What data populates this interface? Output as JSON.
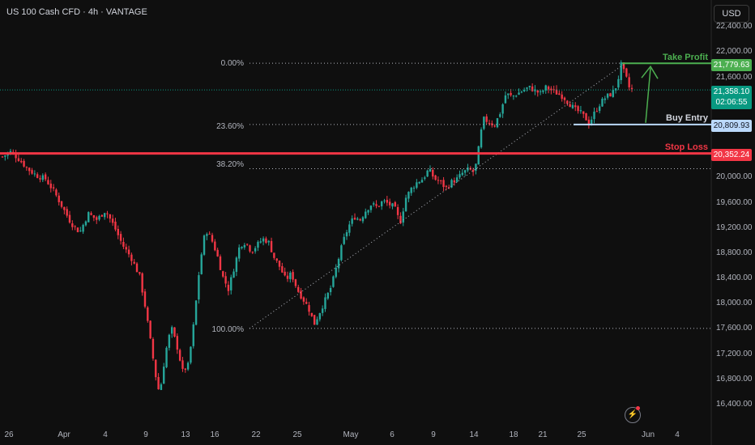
{
  "header": {
    "title": "US 100 Cash CFD · 4h · VANTAGE",
    "currency_button": "USD"
  },
  "colors": {
    "up": "#26a69a",
    "down": "#f23645",
    "take_profit": "#4caf50",
    "stop_loss": "#f23645",
    "buy_entry": "#bbd9fb",
    "price": "#089981"
  },
  "lightning_icon": "⚡",
  "chart_data": {
    "type": "candlestick",
    "symbol": "US 100 Cash CFD",
    "timeframe": "4h",
    "broker": "VANTAGE",
    "y_ticks": [
      "22,400.00",
      "22,000.00",
      "21,600.00",
      "20,000.00",
      "19,600.00",
      "19,200.00",
      "18,800.00",
      "18,400.00",
      "18,000.00",
      "17,600.00",
      "17,200.00",
      "16,800.00",
      "16,400.00"
    ],
    "x_ticks": [
      "26",
      "Apr",
      "4",
      "9",
      "13",
      "16",
      "22",
      "25",
      "May",
      "6",
      "9",
      "14",
      "18",
      "21",
      "25",
      "Jun",
      "4"
    ],
    "levels": {
      "take_profit": {
        "label": "Take Profit",
        "price": "21,779.63"
      },
      "current": {
        "price": "21,358.10",
        "countdown": "02:06:55"
      },
      "buy_entry": {
        "label": "Buy Entry",
        "price": "20,809.93"
      },
      "stop_loss": {
        "label": "Stop Loss",
        "price": "20,352.24"
      }
    },
    "fib_levels": [
      {
        "label": "0.00%",
        "price": 21780
      },
      {
        "label": "23.60%",
        "price": 20810
      },
      {
        "label": "38.20%",
        "price": 20110
      },
      {
        "label": "100.00%",
        "price": 17580
      }
    ],
    "close_path": [
      [
        0,
        20300
      ],
      [
        3,
        20380
      ],
      [
        6,
        20250
      ],
      [
        9,
        20100
      ],
      [
        12,
        20000
      ],
      [
        15,
        19950
      ],
      [
        18,
        19750
      ],
      [
        21,
        19500
      ],
      [
        24,
        19250
      ],
      [
        27,
        19100
      ],
      [
        30,
        19400
      ],
      [
        33,
        19300
      ],
      [
        36,
        19450
      ],
      [
        39,
        19200
      ],
      [
        42,
        18900
      ],
      [
        45,
        18700
      ],
      [
        48,
        18400
      ],
      [
        50,
        17900
      ],
      [
        52,
        17300
      ],
      [
        54,
        16700
      ],
      [
        55,
        16550
      ],
      [
        57,
        17200
      ],
      [
        59,
        17600
      ],
      [
        61,
        17300
      ],
      [
        63,
        16900
      ],
      [
        65,
        17000
      ],
      [
        67,
        17700
      ],
      [
        69,
        18600
      ],
      [
        71,
        19150
      ],
      [
        73,
        19000
      ],
      [
        75,
        18750
      ],
      [
        77,
        18400
      ],
      [
        79,
        18200
      ],
      [
        81,
        18550
      ],
      [
        83,
        18900
      ],
      [
        85,
        18950
      ],
      [
        87,
        18800
      ],
      [
        89,
        18900
      ],
      [
        91,
        19000
      ],
      [
        93,
        18950
      ],
      [
        95,
        18700
      ],
      [
        97,
        18550
      ],
      [
        99,
        18350
      ],
      [
        101,
        18450
      ],
      [
        103,
        18200
      ],
      [
        105,
        18050
      ],
      [
        107,
        17900
      ],
      [
        109,
        17650
      ],
      [
        111,
        17850
      ],
      [
        113,
        18050
      ],
      [
        115,
        18250
      ],
      [
        117,
        18600
      ],
      [
        119,
        18950
      ],
      [
        121,
        19200
      ],
      [
        123,
        19350
      ],
      [
        125,
        19300
      ],
      [
        127,
        19450
      ],
      [
        129,
        19550
      ],
      [
        131,
        19500
      ],
      [
        133,
        19600
      ],
      [
        135,
        19550
      ],
      [
        137,
        19500
      ],
      [
        139,
        19250
      ],
      [
        141,
        19650
      ],
      [
        143,
        19800
      ],
      [
        145,
        19900
      ],
      [
        147,
        19950
      ],
      [
        149,
        20100
      ],
      [
        151,
        19950
      ],
      [
        153,
        19900
      ],
      [
        155,
        19800
      ],
      [
        157,
        19900
      ],
      [
        159,
        19950
      ],
      [
        161,
        20050
      ],
      [
        163,
        20100
      ],
      [
        165,
        20050
      ],
      [
        166,
        20300
      ],
      [
        168,
        20900
      ],
      [
        170,
        20850
      ],
      [
        172,
        20800
      ],
      [
        174,
        21000
      ],
      [
        176,
        21300
      ],
      [
        178,
        21250
      ],
      [
        180,
        21300
      ],
      [
        182,
        21350
      ],
      [
        184,
        21400
      ],
      [
        186,
        21350
      ],
      [
        188,
        21300
      ],
      [
        190,
        21400
      ],
      [
        192,
        21350
      ],
      [
        194,
        21300
      ],
      [
        196,
        21250
      ],
      [
        198,
        21150
      ],
      [
        200,
        21050
      ],
      [
        202,
        21000
      ],
      [
        204,
        20900
      ],
      [
        205,
        20820
      ],
      [
        207,
        21000
      ],
      [
        209,
        21150
      ],
      [
        211,
        21250
      ],
      [
        213,
        21300
      ],
      [
        215,
        21450
      ],
      [
        216,
        21780
      ],
      [
        218,
        21550
      ],
      [
        219,
        21400
      ],
      [
        220,
        21358
      ]
    ],
    "price_range": [
      16100,
      22700
    ]
  }
}
